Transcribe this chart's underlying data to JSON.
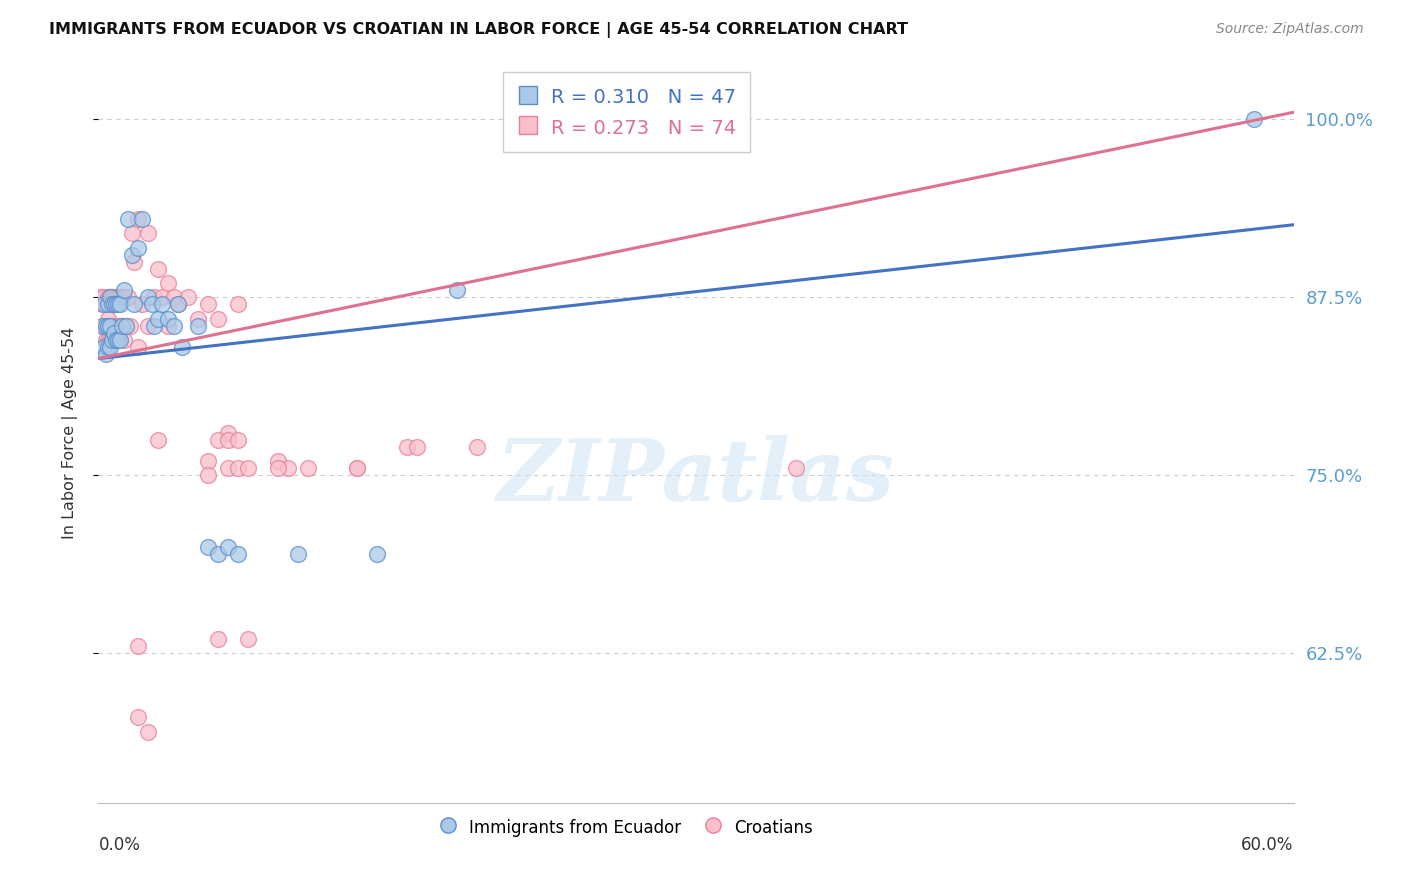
{
  "title": "IMMIGRANTS FROM ECUADOR VS CROATIAN IN LABOR FORCE | AGE 45-54 CORRELATION CHART",
  "source": "Source: ZipAtlas.com",
  "ylabel": "In Labor Force | Age 45-54",
  "xmin": 0.0,
  "xmax": 0.6,
  "ymin": 0.52,
  "ymax": 1.04,
  "ecuador_R": 0.31,
  "ecuador_N": 47,
  "croatian_R": 0.273,
  "croatian_N": 74,
  "ecuador_color": "#aac9e8",
  "croatian_color": "#f9c0cc",
  "ecuador_edge_color": "#5b8fc9",
  "croatian_edge_color": "#e8809a",
  "ecuador_line_color": "#4472c4",
  "croatian_line_color": "#e07090",
  "ytick_vals": [
    0.625,
    0.75,
    0.875,
    1.0
  ],
  "ytick_labels": [
    "62.5%",
    "75.0%",
    "87.5%",
    "100.0%"
  ],
  "watermark_text": "ZIPatlas",
  "ecuador_x": [
    0.002,
    0.003,
    0.003,
    0.004,
    0.004,
    0.005,
    0.005,
    0.005,
    0.006,
    0.006,
    0.006,
    0.007,
    0.007,
    0.008,
    0.008,
    0.009,
    0.009,
    0.01,
    0.01,
    0.011,
    0.011,
    0.012,
    0.013,
    0.014,
    0.015,
    0.017,
    0.018,
    0.02,
    0.022,
    0.025,
    0.027,
    0.028,
    0.03,
    0.032,
    0.035,
    0.038,
    0.04,
    0.042,
    0.05,
    0.055,
    0.06,
    0.065,
    0.07,
    0.1,
    0.14,
    0.18,
    0.58
  ],
  "ecuador_y": [
    0.855,
    0.87,
    0.84,
    0.855,
    0.835,
    0.87,
    0.855,
    0.84,
    0.875,
    0.855,
    0.84,
    0.87,
    0.845,
    0.87,
    0.85,
    0.87,
    0.845,
    0.87,
    0.845,
    0.87,
    0.845,
    0.855,
    0.88,
    0.855,
    0.93,
    0.905,
    0.87,
    0.91,
    0.93,
    0.875,
    0.87,
    0.855,
    0.86,
    0.87,
    0.86,
    0.855,
    0.87,
    0.84,
    0.855,
    0.7,
    0.695,
    0.7,
    0.695,
    0.695,
    0.695,
    0.88,
    1.0
  ],
  "croatian_x": [
    0.001,
    0.002,
    0.003,
    0.003,
    0.004,
    0.004,
    0.005,
    0.005,
    0.005,
    0.006,
    0.006,
    0.006,
    0.007,
    0.007,
    0.007,
    0.008,
    0.008,
    0.009,
    0.009,
    0.01,
    0.01,
    0.011,
    0.011,
    0.012,
    0.012,
    0.013,
    0.013,
    0.014,
    0.015,
    0.016,
    0.017,
    0.018,
    0.02,
    0.022,
    0.025,
    0.028,
    0.03,
    0.032,
    0.035,
    0.038,
    0.04,
    0.045,
    0.05,
    0.055,
    0.06,
    0.065,
    0.07,
    0.02,
    0.025,
    0.03,
    0.035,
    0.055,
    0.06,
    0.065,
    0.07,
    0.13,
    0.155,
    0.06,
    0.075,
    0.09,
    0.16,
    0.19,
    0.095,
    0.105,
    0.09,
    0.35,
    0.13,
    0.065,
    0.07,
    0.075,
    0.02,
    0.02,
    0.025,
    0.055
  ],
  "croatian_y": [
    0.875,
    0.87,
    0.875,
    0.855,
    0.87,
    0.845,
    0.875,
    0.86,
    0.845,
    0.875,
    0.855,
    0.845,
    0.875,
    0.855,
    0.845,
    0.875,
    0.855,
    0.875,
    0.855,
    0.875,
    0.855,
    0.875,
    0.855,
    0.875,
    0.855,
    0.875,
    0.845,
    0.855,
    0.875,
    0.855,
    0.92,
    0.9,
    0.93,
    0.87,
    0.92,
    0.875,
    0.895,
    0.875,
    0.885,
    0.875,
    0.87,
    0.875,
    0.86,
    0.87,
    0.86,
    0.78,
    0.87,
    0.84,
    0.855,
    0.775,
    0.855,
    0.76,
    0.775,
    0.775,
    0.775,
    0.755,
    0.77,
    0.635,
    0.635,
    0.76,
    0.77,
    0.77,
    0.755,
    0.755,
    0.755,
    0.755,
    0.755,
    0.755,
    0.755,
    0.755,
    0.63,
    0.58,
    0.57,
    0.75
  ]
}
